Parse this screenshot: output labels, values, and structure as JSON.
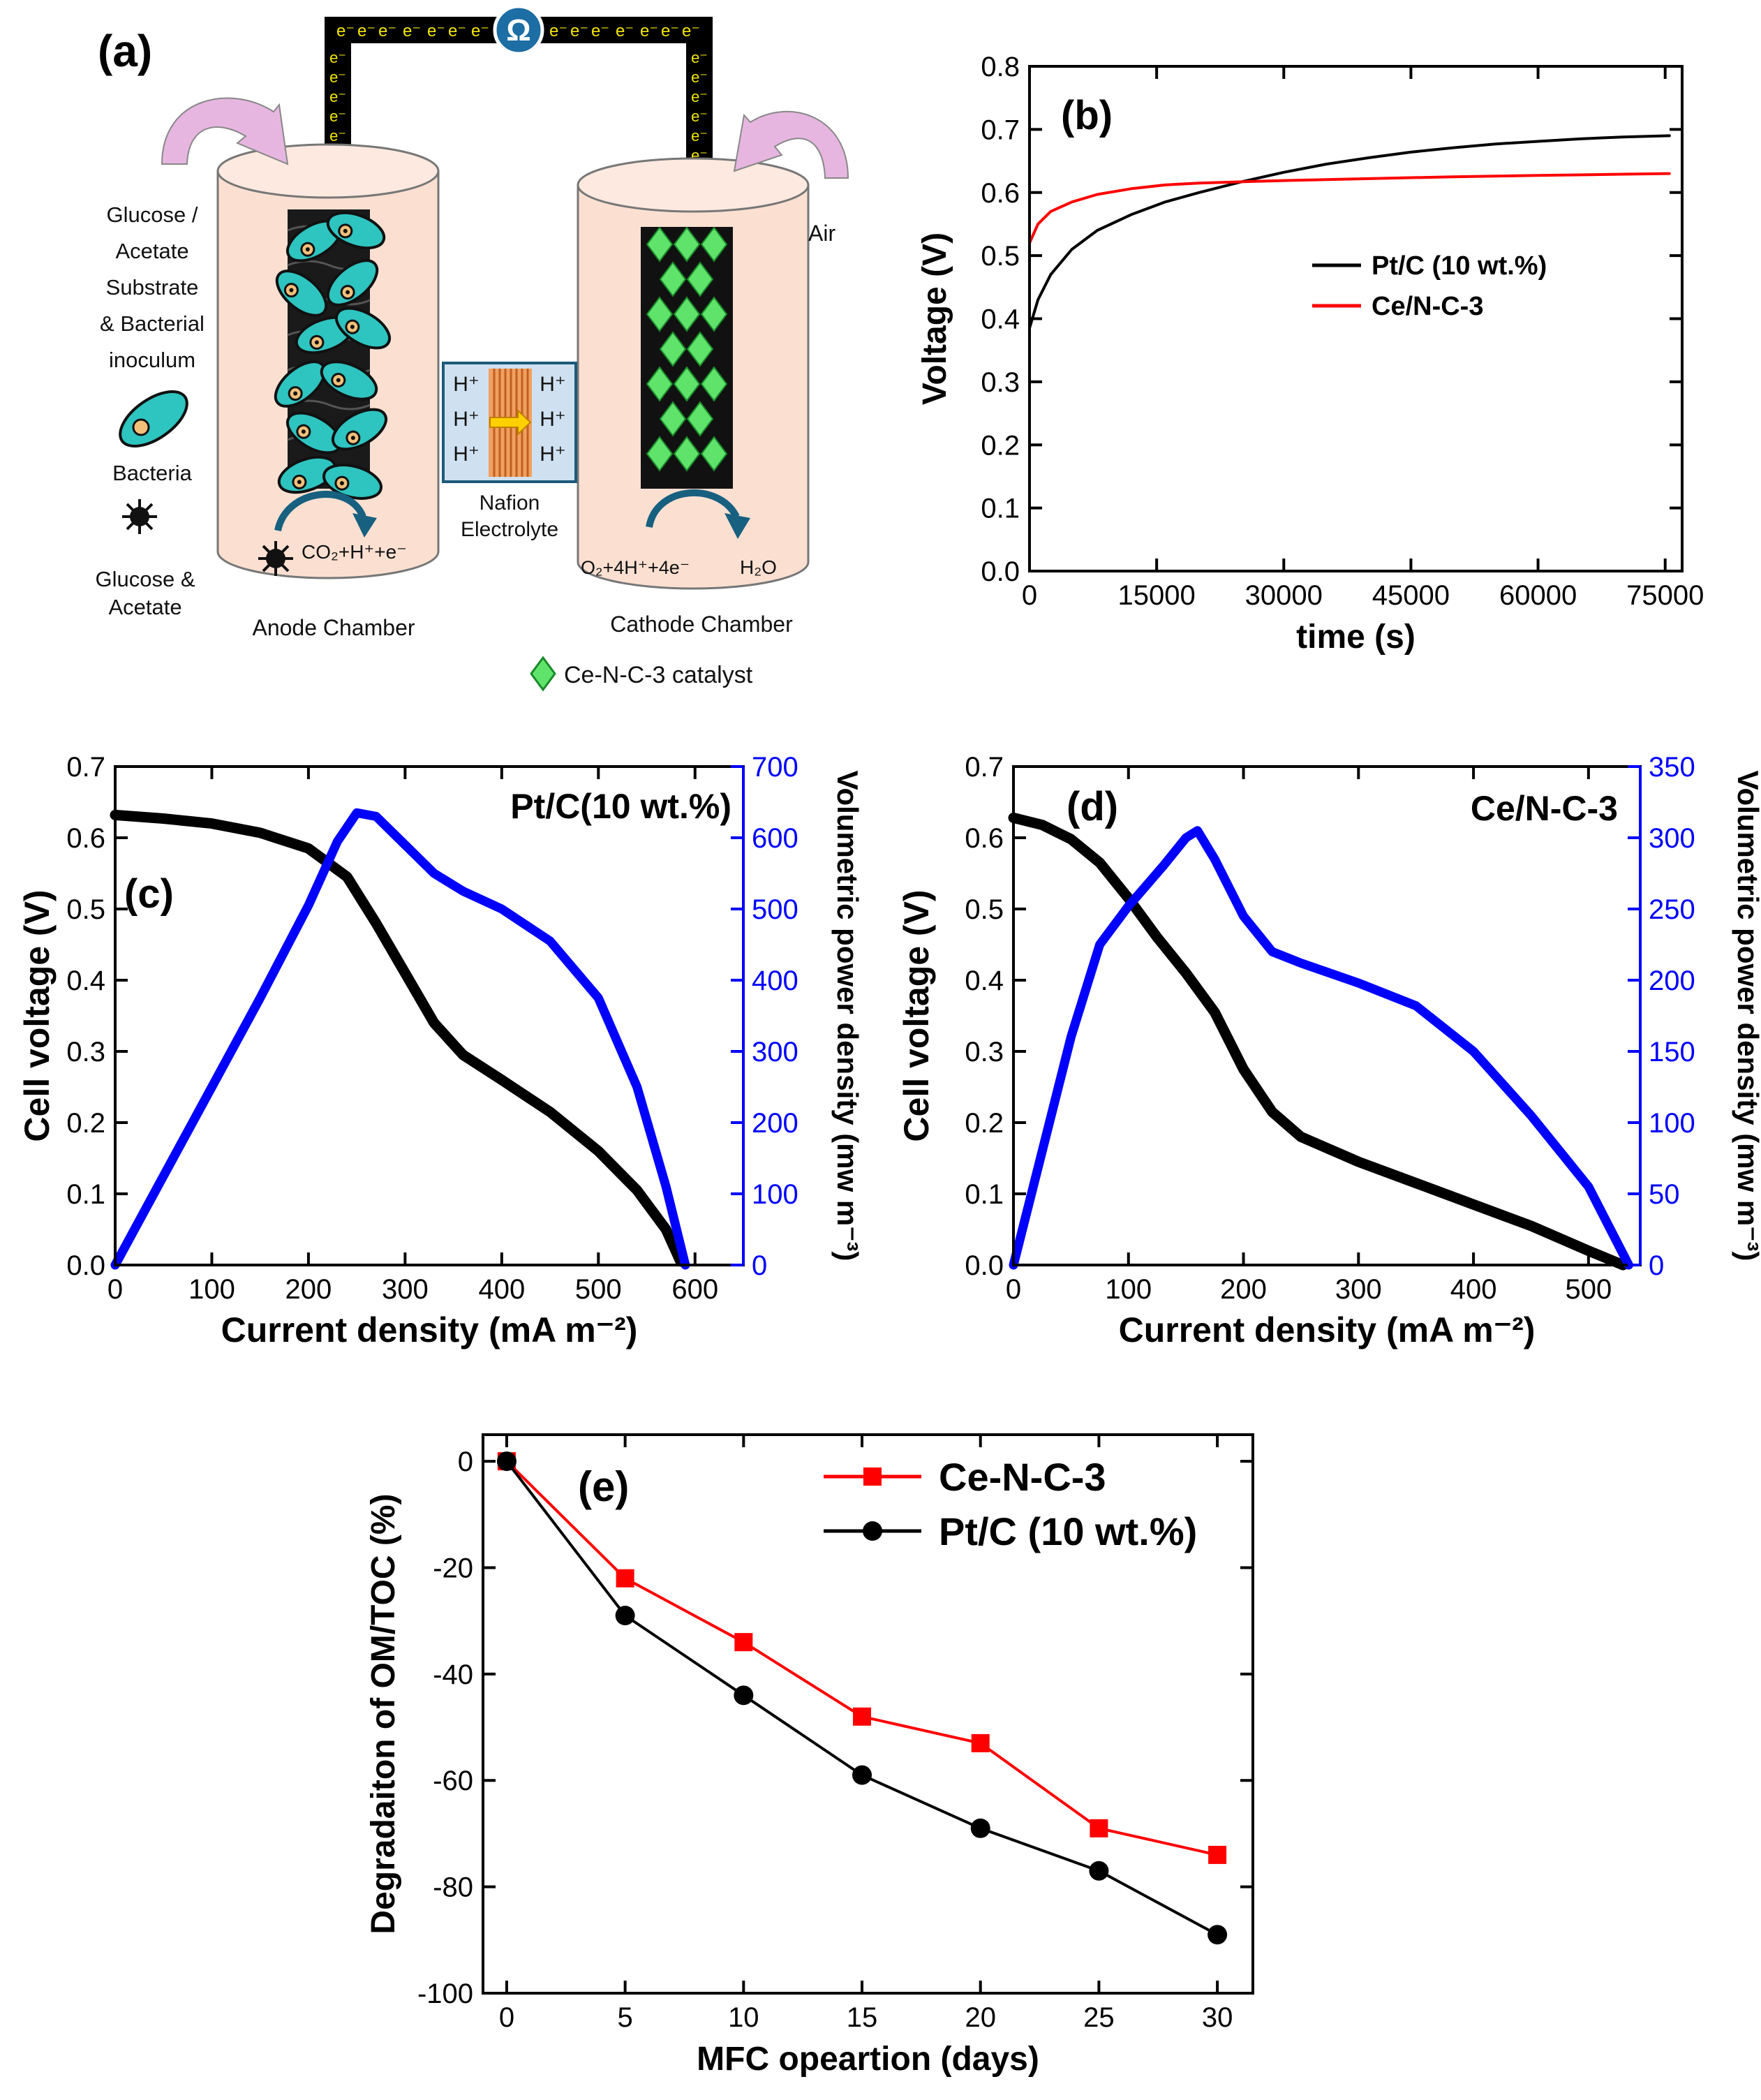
{
  "figure": {
    "panel_a": {
      "label": "(a)",
      "feed_text": [
        "Glucose /",
        "Acetate",
        "Substrate",
        "& Bacterial",
        "inoculum"
      ],
      "bacteria_label": "Bacteria",
      "glucose_label": [
        "Glucose &",
        "Acetate"
      ],
      "electron_symbol": "e⁻",
      "resistor_symbol": "Ω",
      "proton_symbol": "H⁺",
      "membrane_label": [
        "Nafion",
        "Electrolyte"
      ],
      "anode_reaction": "CO₂+H⁺+e⁻",
      "cathode_reaction": "O₂+4H⁺+4e⁻",
      "cathode_product": "H₂O",
      "air_label": "Air",
      "anode_chamber": "Anode Chamber",
      "cathode_chamber": "Cathode Chamber",
      "catalyst_legend": "Ce-N-C-3 catalyst",
      "colors": {
        "chamber": "#fbe0d2",
        "membrane": "#cfe1f0",
        "catalyst": "#5fe36a",
        "arrow": "#e6b6e0",
        "bacteria": "#2ec4c0"
      }
    }
  },
  "chart_data": [
    {
      "id": "b",
      "panel_label": "(b)",
      "type": "line",
      "xlabel": "time (s)",
      "ylabel": "Voltage (V)",
      "xlim": [
        0,
        77000
      ],
      "ylim": [
        0,
        0.8
      ],
      "xticks": [
        0,
        15000,
        30000,
        45000,
        60000,
        75000
      ],
      "yticks": [
        0.0,
        0.1,
        0.2,
        0.3,
        0.4,
        0.5,
        0.6,
        0.7,
        0.8
      ],
      "legend_position": "center-right",
      "series": [
        {
          "name": "Pt/C (10 wt.%)",
          "color": "#000000",
          "x": [
            0,
            1000,
            2500,
            5000,
            8000,
            12000,
            16000,
            20000,
            25000,
            30000,
            35000,
            40000,
            45000,
            50000,
            55000,
            60000,
            65000,
            70000,
            75500
          ],
          "y": [
            0.385,
            0.43,
            0.47,
            0.51,
            0.54,
            0.565,
            0.585,
            0.6,
            0.617,
            0.632,
            0.645,
            0.655,
            0.664,
            0.671,
            0.677,
            0.681,
            0.685,
            0.688,
            0.69
          ]
        },
        {
          "name": "Ce/N-C-3",
          "color": "#ff0000",
          "x": [
            0,
            1000,
            2500,
            5000,
            8000,
            12000,
            16000,
            20000,
            30000,
            40000,
            50000,
            60000,
            70000,
            75500
          ],
          "y": [
            0.52,
            0.55,
            0.57,
            0.585,
            0.597,
            0.606,
            0.612,
            0.615,
            0.619,
            0.622,
            0.625,
            0.627,
            0.629,
            0.63
          ]
        }
      ]
    },
    {
      "id": "c",
      "panel_label": "(c)",
      "type": "line",
      "title": "Pt/C(10 wt.%)",
      "xlabel": "Current density (mA m⁻²)",
      "ylabel": "Cell voltage (V)",
      "y2label": "Volumetric power density (mw m⁻³)",
      "xlim": [
        0,
        650
      ],
      "ylim": [
        0,
        0.7
      ],
      "y2lim": [
        0,
        700
      ],
      "xticks": [
        0,
        100,
        200,
        300,
        400,
        500,
        600
      ],
      "yticks": [
        0.0,
        0.1,
        0.2,
        0.3,
        0.4,
        0.5,
        0.6,
        0.7
      ],
      "y2ticks": [
        0,
        100,
        200,
        300,
        400,
        500,
        600,
        700
      ],
      "series": [
        {
          "name": "Cell voltage",
          "axis": "left",
          "color": "#000000",
          "x": [
            0,
            50,
            100,
            150,
            200,
            240,
            270,
            300,
            330,
            360,
            400,
            450,
            500,
            540,
            570,
            585
          ],
          "y": [
            0.632,
            0.627,
            0.62,
            0.607,
            0.585,
            0.545,
            0.48,
            0.41,
            0.34,
            0.295,
            0.26,
            0.215,
            0.16,
            0.105,
            0.05,
            0.005
          ]
        },
        {
          "name": "Volumetric power density",
          "axis": "right",
          "color": "#0000ff",
          "x": [
            0,
            50,
            100,
            150,
            200,
            230,
            250,
            270,
            300,
            330,
            360,
            400,
            450,
            500,
            540,
            570,
            590
          ],
          "y": [
            0,
            125,
            250,
            375,
            505,
            595,
            635,
            630,
            590,
            550,
            525,
            500,
            455,
            375,
            250,
            110,
            0
          ]
        }
      ]
    },
    {
      "id": "d",
      "panel_label": "(d)",
      "type": "line",
      "title": "Ce/N-C-3",
      "xlabel": "Current density (mA m⁻²)",
      "ylabel": "Cell voltage (V)",
      "y2label": "Volumetric power density (mw m⁻³)",
      "xlim": [
        0,
        545
      ],
      "ylim": [
        0,
        0.7
      ],
      "y2lim": [
        0,
        350
      ],
      "xticks": [
        0,
        100,
        200,
        300,
        400,
        500
      ],
      "yticks": [
        0.0,
        0.1,
        0.2,
        0.3,
        0.4,
        0.5,
        0.6,
        0.7
      ],
      "y2ticks": [
        0,
        50,
        100,
        150,
        200,
        250,
        300,
        350
      ],
      "series": [
        {
          "name": "Cell voltage",
          "axis": "left",
          "color": "#000000",
          "x": [
            0,
            25,
            50,
            75,
            100,
            125,
            150,
            175,
            200,
            225,
            250,
            300,
            350,
            400,
            450,
            500,
            530
          ],
          "y": [
            0.628,
            0.618,
            0.598,
            0.565,
            0.515,
            0.46,
            0.41,
            0.355,
            0.275,
            0.215,
            0.18,
            0.145,
            0.115,
            0.085,
            0.055,
            0.02,
            0.0
          ]
        },
        {
          "name": "Volumetric power density",
          "axis": "right",
          "color": "#0000ff",
          "x": [
            0,
            25,
            50,
            75,
            100,
            130,
            150,
            160,
            175,
            200,
            225,
            250,
            300,
            350,
            400,
            450,
            500,
            535
          ],
          "y": [
            0,
            80,
            160,
            225,
            252,
            280,
            300,
            305,
            285,
            245,
            220,
            212,
            198,
            182,
            150,
            105,
            55,
            0
          ]
        }
      ]
    },
    {
      "id": "e",
      "panel_label": "(e)",
      "type": "line",
      "xlabel": "MFC opeartion (days)",
      "ylabel": "Degradaiton of OM/TOC (%)",
      "xlim": [
        -1,
        31.5
      ],
      "ylim": [
        -100,
        5
      ],
      "xticks": [
        0,
        5,
        10,
        15,
        20,
        25,
        30
      ],
      "yticks": [
        0,
        -20,
        -40,
        -60,
        -80,
        -100
      ],
      "legend_position": "top-right",
      "series": [
        {
          "name": "Ce-N-C-3",
          "color": "#ff0000",
          "marker": "square",
          "x": [
            0,
            5,
            10,
            15,
            20,
            25,
            30
          ],
          "y": [
            0,
            -22,
            -34,
            -48,
            -53,
            -69,
            -74
          ]
        },
        {
          "name": "Pt/C (10 wt.%)",
          "color": "#000000",
          "marker": "circle",
          "x": [
            0,
            5,
            10,
            15,
            20,
            25,
            30
          ],
          "y": [
            0,
            -29,
            -44,
            -59,
            -69,
            -77,
            -89
          ]
        }
      ]
    }
  ]
}
